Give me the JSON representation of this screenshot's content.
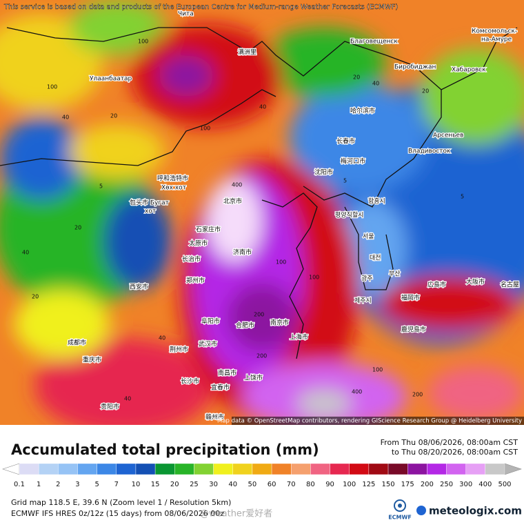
{
  "header": {
    "notice": "This service is based on data and products of the European Centre for Medium-range Weather Forecasts (ECMWF)"
  },
  "map": {
    "places": [
      "Чита",
      "Улаанбаатар",
      "满洲里",
      "Благовещенск",
      "Комсомольск-",
      "на-Амуре",
      "Биробиджан",
      "Хабаровск",
      "哈尔滨市",
      "长春市",
      "Арсеньев",
      "Владивосток",
      "梅河口市",
      "沈阳市",
      "呼和浩特市",
      "Хөх хот",
      "包头市 Бугат",
      "хот",
      "北京市",
      "함흥시",
      "평양직할시",
      "石家庄市",
      "太原市",
      "济南市",
      "서울",
      "长治市",
      "대전",
      "郑州市",
      "西安市",
      "광주",
      "부산",
      "広島市",
      "大阪市",
      "名古屋",
      "福岡市",
      "제주시",
      "阜阳市",
      "合肥市",
      "南京市",
      "上海市",
      "鹿児島市",
      "成都市",
      "武汉市",
      "荆州市",
      "重庆市",
      "南昌市",
      "上饶市",
      "长沙市",
      "宜春市",
      "贵阳市",
      "赣州市"
    ],
    "contour_labels": [
      100,
      40,
      100,
      20,
      40,
      20,
      100,
      40,
      5,
      5,
      400,
      20,
      40,
      100,
      200,
      200,
      400,
      100,
      200,
      40,
      5,
      20,
      40,
      100,
      20
    ],
    "attribution": "Map data © OpenStreetMap contributors, rendering GIScience Research Group @ Heidelberg University"
  },
  "title": "Accumulated total precipitation (mm)",
  "period": {
    "from": "From Thu 08/06/2026, 08:00am CST",
    "to": "to Thu 08/20/2026, 08:00am CST"
  },
  "legend": {
    "levels": [
      0.1,
      1,
      2,
      3,
      5,
      7,
      10,
      15,
      20,
      25,
      30,
      40,
      50,
      60,
      70,
      80,
      90,
      100,
      125,
      150,
      175,
      200,
      250,
      300,
      400,
      500
    ],
    "colors": [
      "#dcdcf5",
      "#b4d2f5",
      "#96c3f5",
      "#64a5f0",
      "#3c87e6",
      "#1e64d2",
      "#1450b4",
      "#0a9632",
      "#28b428",
      "#82d232",
      "#f0f01e",
      "#f0d21e",
      "#f0aa14",
      "#f08228",
      "#f5a06e",
      "#f06482",
      "#e62850",
      "#d20a14",
      "#a00a14",
      "#780a28",
      "#8c14a0",
      "#b428e6",
      "#d264f0",
      "#e6a0f5",
      "#c8c8c8"
    ],
    "low_color": "#ffffff",
    "high_color": "#b4b4b4"
  },
  "info": {
    "grid": "Grid map 118.5 E, 39.6 N (Zoom level 1 / Resolution 5km)",
    "model": "ECMWF IFS HRES 0z/12z (15 days) from 08/06/2026 00z"
  },
  "watermark": "@weather爱好者",
  "logos": {
    "ecmwf": "ECMWF",
    "meteologix": "meteologix.com"
  }
}
